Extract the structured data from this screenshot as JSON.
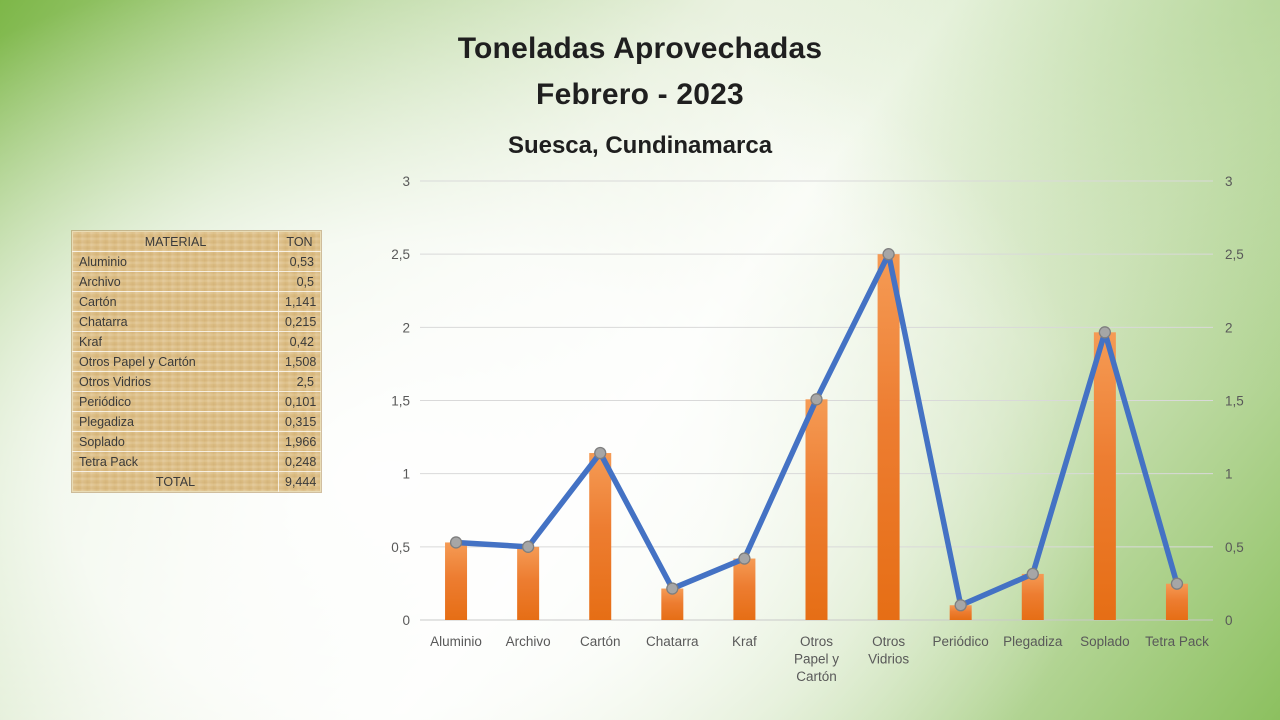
{
  "slide": {
    "title_line1": "Toneladas Aprovechadas",
    "title_line2": "Febrero - 2023",
    "subtitle": "Suesca, Cundinamarca"
  },
  "table": {
    "headers": [
      "MATERIAL",
      "TON"
    ],
    "rows": [
      {
        "material": "Aluminio",
        "ton": "0,53"
      },
      {
        "material": "Archivo",
        "ton": "0,5"
      },
      {
        "material": "Cartón",
        "ton": "1,141"
      },
      {
        "material": "Chatarra",
        "ton": "0,215"
      },
      {
        "material": "Kraf",
        "ton": "0,42"
      },
      {
        "material": "Otros Papel y Cartón",
        "ton": "1,508"
      },
      {
        "material": "Otros Vidrios",
        "ton": "2,5"
      },
      {
        "material": "Periódico",
        "ton": "0,101"
      },
      {
        "material": "Plegadiza",
        "ton": "0,315"
      },
      {
        "material": "Soplado",
        "ton": "1,966"
      },
      {
        "material": "Tetra Pack",
        "ton": "0,248"
      }
    ],
    "total": {
      "label": "TOTAL",
      "value": "9,444"
    }
  },
  "chart_data": {
    "type": "bar",
    "title": "",
    "categories": [
      "Aluminio",
      "Archivo",
      "Cartón",
      "Chatarra",
      "Kraf",
      "Otros Papel y Cartón",
      "Otros Vidrios",
      "Periódico",
      "Plegadiza",
      "Soplado",
      "Tetra Pack"
    ],
    "category_label_lines": [
      [
        "Aluminio"
      ],
      [
        "Archivo"
      ],
      [
        "Cartón"
      ],
      [
        "Chatarra"
      ],
      [
        "Kraf"
      ],
      [
        "Otros",
        "Papel y",
        "Cartón"
      ],
      [
        "Otros",
        "Vidrios"
      ],
      [
        "Periódico"
      ],
      [
        "Plegadiza"
      ],
      [
        "Soplado"
      ],
      [
        "Tetra Pack"
      ]
    ],
    "series": [
      {
        "name": "TON",
        "type": "bar",
        "color": "#ED7D31",
        "values": [
          0.53,
          0.5,
          1.141,
          0.215,
          0.42,
          1.508,
          2.5,
          0.101,
          0.315,
          1.966,
          0.248
        ]
      },
      {
        "name": "TON",
        "type": "line",
        "color": "#4472C4",
        "marker_color": "#A6A6A6",
        "values": [
          0.53,
          0.5,
          1.141,
          0.215,
          0.42,
          1.508,
          2.5,
          0.101,
          0.315,
          1.966,
          0.248
        ]
      }
    ],
    "xlabel": "",
    "ylabel": "",
    "ylim": [
      0,
      3
    ],
    "ytick_values": [
      0,
      0.5,
      1,
      1.5,
      2,
      2.5,
      3
    ],
    "ytick_labels": [
      "0",
      "0,5",
      "1",
      "1,5",
      "2",
      "2,5",
      "3"
    ],
    "grid": true,
    "secondary_right_axis": true,
    "legend": "none",
    "colors": {
      "gridline": "#d9d9d9",
      "axis_line": "#c9c9c9",
      "tick_label": "#595959",
      "bar_top": "#F59B55",
      "bar_mid": "#ED7D31",
      "bar_bottom": "#E66E15",
      "line": "#4472C4",
      "marker_fill": "#A6A6A6",
      "marker_stroke": "#7F7F7F"
    }
  }
}
